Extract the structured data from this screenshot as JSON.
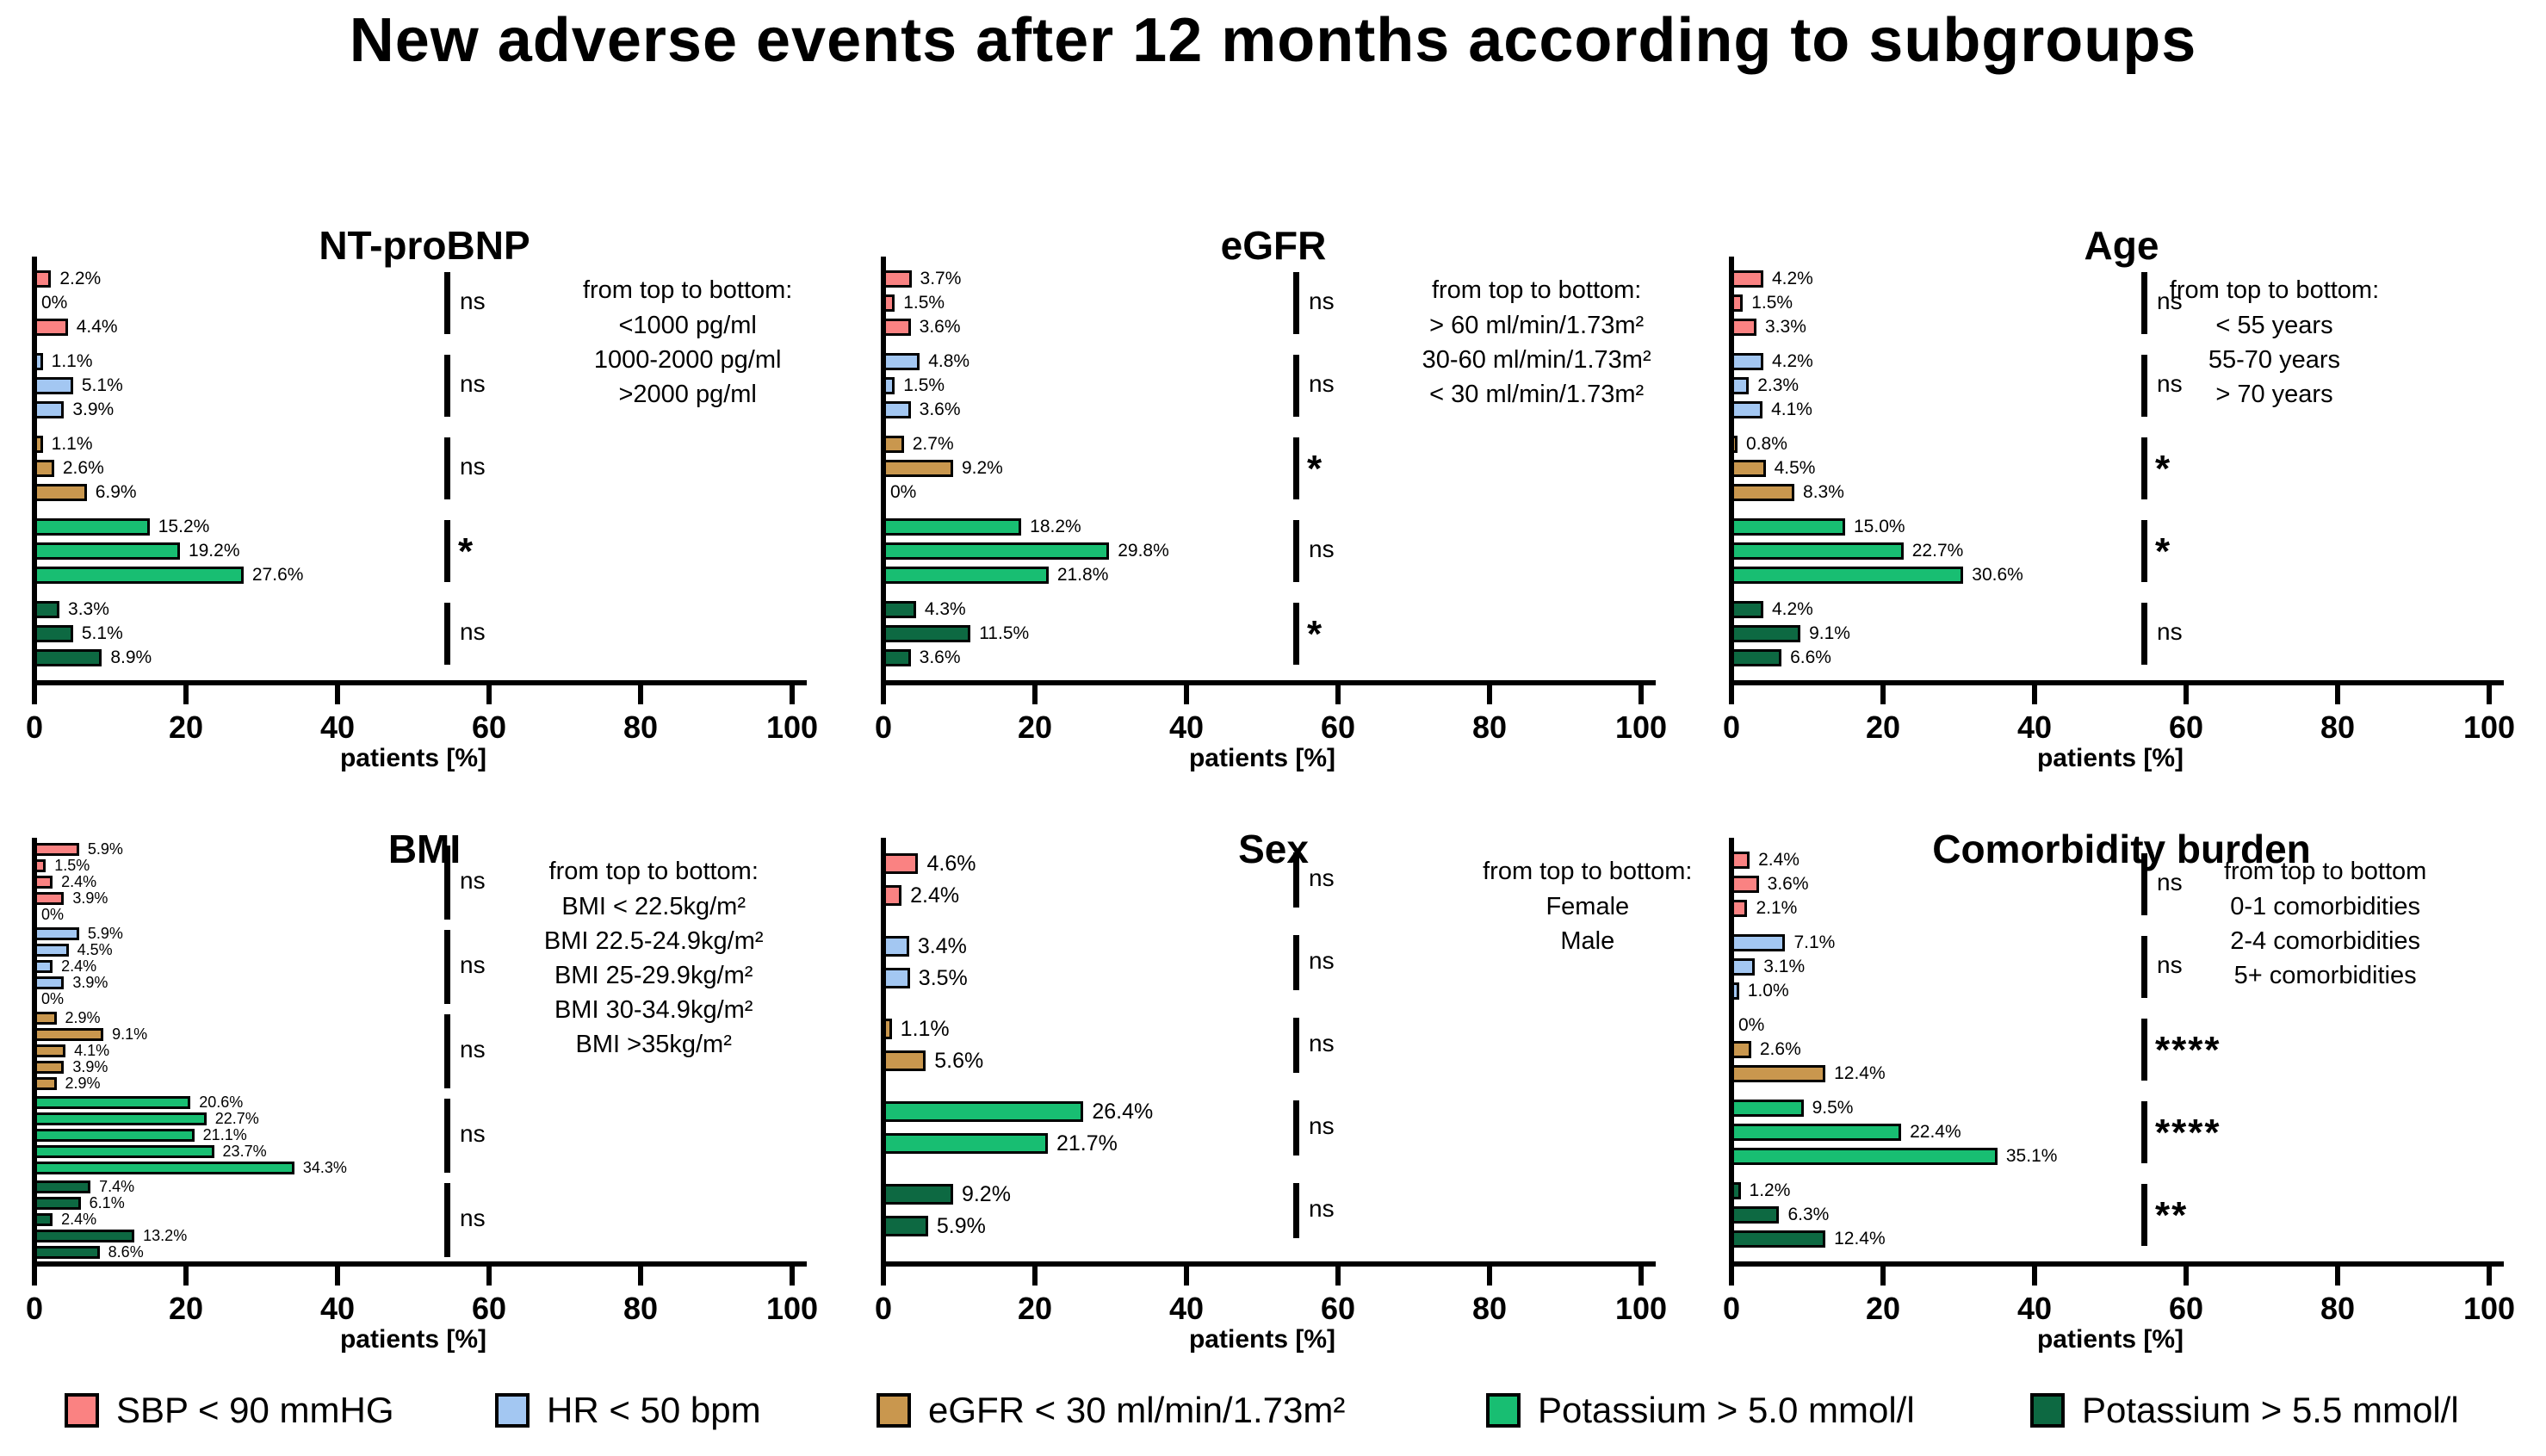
{
  "title": "New adverse events after 12 months according to subgroups",
  "legend": {
    "items": [
      {
        "label": "SBP < 90 mmHG",
        "color": "#FA8282"
      },
      {
        "label": "HR < 50 bpm",
        "color": "#A3C7F2"
      },
      {
        "label": "eGFR < 30 ml/min/1.73m²",
        "color": "#C9974E"
      },
      {
        "label": "Potassium > 5.0 mmol/l",
        "color": "#18BE72"
      },
      {
        "label": "Potassium > 5.5 mmol/l",
        "color": "#0D6942"
      }
    ]
  },
  "chart_data": [
    {
      "type": "bar",
      "orientation": "horizontal",
      "title": "NT-proBNP",
      "xlabel": "patients [%]",
      "xlim": [
        0,
        100
      ],
      "xticks": [
        0,
        20,
        40,
        60,
        80,
        100
      ],
      "grid": false,
      "annotation": [
        "from top to bottom:",
        "<1000 pg/ml",
        "1000-2000 pg/ml",
        ">2000 pg/ml"
      ],
      "groups": [
        {
          "name": "SBP < 90 mmHG",
          "values": [
            2.2,
            0,
            4.4
          ],
          "labels": [
            "2.2%",
            "0%",
            "4.4%"
          ],
          "significance": "ns"
        },
        {
          "name": "HR < 50 bpm",
          "values": [
            1.1,
            5.1,
            3.9
          ],
          "labels": [
            "1.1%",
            "5.1%",
            "3.9%"
          ],
          "significance": "ns"
        },
        {
          "name": "eGFR < 30 ml/min/1.73m²",
          "values": [
            1.1,
            2.6,
            6.9
          ],
          "labels": [
            "1.1%",
            "2.6%",
            "6.9%"
          ],
          "significance": "ns"
        },
        {
          "name": "Potassium > 5.0 mmol/l",
          "values": [
            15.2,
            19.2,
            27.6
          ],
          "labels": [
            "15.2%",
            "19.2%",
            "27.6%"
          ],
          "significance": "*"
        },
        {
          "name": "Potassium > 5.5 mmol/l",
          "values": [
            3.3,
            5.1,
            8.9
          ],
          "labels": [
            "3.3%",
            "5.1%",
            "8.9%"
          ],
          "significance": "ns"
        }
      ]
    },
    {
      "type": "bar",
      "orientation": "horizontal",
      "title": "eGFR",
      "xlabel": "patients [%]",
      "xlim": [
        0,
        100
      ],
      "xticks": [
        0,
        20,
        40,
        60,
        80,
        100
      ],
      "grid": false,
      "annotation": [
        "from top to bottom:",
        "> 60 ml/min/1.73m²",
        "30-60 ml/min/1.73m²",
        "< 30 ml/min/1.73m²"
      ],
      "groups": [
        {
          "name": "SBP < 90 mmHG",
          "values": [
            3.7,
            1.5,
            3.6
          ],
          "labels": [
            "3.7%",
            "1.5%",
            "3.6%"
          ],
          "significance": "ns"
        },
        {
          "name": "HR < 50 bpm",
          "values": [
            4.8,
            1.5,
            3.6
          ],
          "labels": [
            "4.8%",
            "1.5%",
            "3.6%"
          ],
          "significance": "ns"
        },
        {
          "name": "eGFR < 30 ml/min/1.73m²",
          "values": [
            2.7,
            9.2,
            0
          ],
          "labels": [
            "2.7%",
            "9.2%",
            "0%"
          ],
          "significance": "*"
        },
        {
          "name": "Potassium > 5.0 mmol/l",
          "values": [
            18.2,
            29.8,
            21.8
          ],
          "labels": [
            "18.2%",
            "29.8%",
            "21.8%"
          ],
          "significance": "ns"
        },
        {
          "name": "Potassium > 5.5 mmol/l",
          "values": [
            4.3,
            11.5,
            3.6
          ],
          "labels": [
            "4.3%",
            "11.5%",
            "3.6%"
          ],
          "significance": "*"
        }
      ]
    },
    {
      "type": "bar",
      "orientation": "horizontal",
      "title": "Age",
      "xlabel": "patients [%]",
      "xlim": [
        0,
        100
      ],
      "xticks": [
        0,
        20,
        40,
        60,
        80,
        100
      ],
      "grid": false,
      "annotation": [
        "from top to bottom:",
        "< 55 years",
        "55-70 years",
        "> 70 years"
      ],
      "groups": [
        {
          "name": "SBP < 90 mmHG",
          "values": [
            4.2,
            1.5,
            3.3
          ],
          "labels": [
            "4.2%",
            "1.5%",
            "3.3%"
          ],
          "significance": "ns"
        },
        {
          "name": "HR < 50 bpm",
          "values": [
            4.2,
            2.3,
            4.1
          ],
          "labels": [
            "4.2%",
            "2.3%",
            "4.1%"
          ],
          "significance": "ns"
        },
        {
          "name": "eGFR < 30 ml/min/1.73m²",
          "values": [
            0.8,
            4.5,
            8.3
          ],
          "labels": [
            "0.8%",
            "4.5%",
            "8.3%"
          ],
          "significance": "*"
        },
        {
          "name": "Potassium > 5.0 mmol/l",
          "values": [
            15.0,
            22.7,
            30.6
          ],
          "labels": [
            "15.0%",
            "22.7%",
            "30.6%"
          ],
          "significance": "*"
        },
        {
          "name": "Potassium > 5.5 mmol/l",
          "values": [
            4.2,
            9.1,
            6.6
          ],
          "labels": [
            "4.2%",
            "9.1%",
            "6.6%"
          ],
          "significance": "ns"
        }
      ]
    },
    {
      "type": "bar",
      "orientation": "horizontal",
      "title": "BMI",
      "xlabel": "patients [%]",
      "xlim": [
        0,
        100
      ],
      "xticks": [
        0,
        20,
        40,
        60,
        80,
        100
      ],
      "grid": false,
      "annotation": [
        "from top to bottom:",
        "BMI < 22.5kg/m²",
        "BMI 22.5-24.9kg/m²",
        "BMI 25-29.9kg/m²",
        "BMI 30-34.9kg/m²",
        "BMI >35kg/m²"
      ],
      "groups": [
        {
          "name": "SBP < 90 mmHG",
          "values": [
            5.9,
            1.5,
            2.4,
            3.9,
            0
          ],
          "labels": [
            "5.9%",
            "1.5%",
            "2.4%",
            "3.9%",
            "0%"
          ],
          "significance": "ns"
        },
        {
          "name": "HR < 50 bpm",
          "values": [
            5.9,
            4.5,
            2.4,
            3.9,
            0
          ],
          "labels": [
            "5.9%",
            "4.5%",
            "2.4%",
            "3.9%",
            "0%"
          ],
          "significance": "ns"
        },
        {
          "name": "eGFR < 30 ml/min/1.73m²",
          "values": [
            2.9,
            9.1,
            4.1,
            3.9,
            2.9
          ],
          "labels": [
            "2.9%",
            "9.1%",
            "4.1%",
            "3.9%",
            "2.9%"
          ],
          "significance": "ns"
        },
        {
          "name": "Potassium > 5.0 mmol/l",
          "values": [
            20.6,
            22.7,
            21.1,
            23.7,
            34.3
          ],
          "labels": [
            "20.6%",
            "22.7%",
            "21.1%",
            "23.7%",
            "34.3%"
          ],
          "significance": "ns"
        },
        {
          "name": "Potassium > 5.5 mmol/l",
          "values": [
            7.4,
            6.1,
            2.4,
            13.2,
            8.6
          ],
          "labels": [
            "7.4%",
            "6.1%",
            "2.4%",
            "13.2%",
            "8.6%"
          ],
          "significance": "ns"
        }
      ]
    },
    {
      "type": "bar",
      "orientation": "horizontal",
      "title": "Sex",
      "xlabel": "patients [%]",
      "xlim": [
        0,
        100
      ],
      "xticks": [
        0,
        20,
        40,
        60,
        80,
        100
      ],
      "grid": false,
      "annotation": [
        "from top to bottom:",
        "Female",
        "Male"
      ],
      "groups": [
        {
          "name": "SBP < 90 mmHG",
          "values": [
            4.6,
            2.4
          ],
          "labels": [
            "4.6%",
            "2.4%"
          ],
          "significance": "ns"
        },
        {
          "name": "HR < 50 bpm",
          "values": [
            3.4,
            3.5
          ],
          "labels": [
            "3.4%",
            "3.5%"
          ],
          "significance": "ns"
        },
        {
          "name": "eGFR < 30 ml/min/1.73m²",
          "values": [
            1.1,
            5.6
          ],
          "labels": [
            "1.1%",
            "5.6%"
          ],
          "significance": "ns"
        },
        {
          "name": "Potassium > 5.0 mmol/l",
          "values": [
            26.4,
            21.7
          ],
          "labels": [
            "26.4%",
            "21.7%"
          ],
          "significance": "ns"
        },
        {
          "name": "Potassium > 5.5 mmol/l",
          "values": [
            9.2,
            5.9
          ],
          "labels": [
            "9.2%",
            "5.9%"
          ],
          "significance": "ns"
        }
      ]
    },
    {
      "type": "bar",
      "orientation": "horizontal",
      "title": "Comorbidity burden",
      "xlabel": "patients [%]",
      "xlim": [
        0,
        100
      ],
      "xticks": [
        0,
        20,
        40,
        60,
        80,
        100
      ],
      "grid": false,
      "annotation": [
        "from top to bottom",
        "0-1 comorbidities",
        "2-4 comorbidities",
        "5+ comorbidities"
      ],
      "groups": [
        {
          "name": "SBP < 90 mmHG",
          "values": [
            2.4,
            3.6,
            2.1
          ],
          "labels": [
            "2.4%",
            "3.6%",
            "2.1%"
          ],
          "significance": "ns"
        },
        {
          "name": "HR < 50 bpm",
          "values": [
            7.1,
            3.1,
            1.0
          ],
          "labels": [
            "7.1%",
            "3.1%",
            "1.0%"
          ],
          "significance": "ns"
        },
        {
          "name": "eGFR < 30 ml/min/1.73m²",
          "values": [
            0,
            2.6,
            12.4
          ],
          "labels": [
            "0%",
            "2.6%",
            "12.4%"
          ],
          "significance": "****"
        },
        {
          "name": "Potassium > 5.0 mmol/l",
          "values": [
            9.5,
            22.4,
            35.1
          ],
          "labels": [
            "9.5%",
            "22.4%",
            "35.1%"
          ],
          "significance": "****"
        },
        {
          "name": "Potassium > 5.5 mmol/l",
          "values": [
            1.2,
            6.3,
            12.4
          ],
          "labels": [
            "1.2%",
            "6.3%",
            "12.4%"
          ],
          "significance": "**"
        }
      ]
    }
  ]
}
